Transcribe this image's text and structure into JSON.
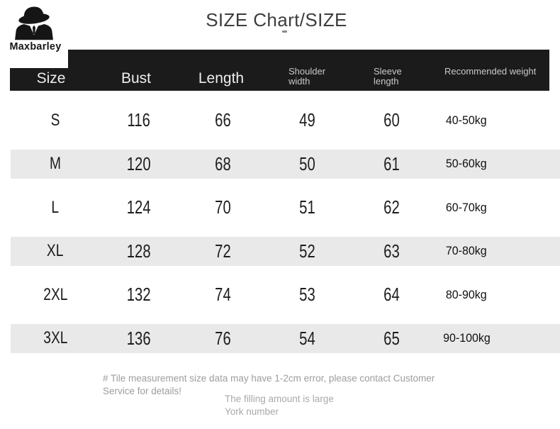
{
  "logo": {
    "brand": "Maxbarley",
    "icon": "hat-man-icon"
  },
  "title": "SIZE Chart/SIZE",
  "chart_data": {
    "type": "table",
    "title": "SIZE Chart/SIZE",
    "columns": [
      {
        "key": "size",
        "label": "Size"
      },
      {
        "key": "bust",
        "label": "Bust"
      },
      {
        "key": "length",
        "label": "Length"
      },
      {
        "key": "shoulder_width",
        "label": "Shoulder width"
      },
      {
        "key": "sleeve_length",
        "label": "Sleeve length"
      },
      {
        "key": "recommended_weight",
        "label": "Recommended weight"
      }
    ],
    "rows": [
      {
        "size": "S",
        "bust": "116",
        "length": "66",
        "shoulder_width": "49",
        "sleeve_length": "60",
        "recommended_weight": "40-50kg"
      },
      {
        "size": "M",
        "bust": "120",
        "length": "68",
        "shoulder_width": "50",
        "sleeve_length": "61",
        "recommended_weight": "50-60kg"
      },
      {
        "size": "L",
        "bust": "124",
        "length": "70",
        "shoulder_width": "51",
        "sleeve_length": "62",
        "recommended_weight": "60-70kg"
      },
      {
        "size": "XL",
        "bust": "128",
        "length": "72",
        "shoulder_width": "52",
        "sleeve_length": "63",
        "recommended_weight": "70-80kg"
      },
      {
        "size": "2XL",
        "bust": "132",
        "length": "74",
        "shoulder_width": "53",
        "sleeve_length": "64",
        "recommended_weight": "80-90kg"
      },
      {
        "size": "3XL",
        "bust": "136",
        "length": "76",
        "shoulder_width": "54",
        "sleeve_length": "65",
        "recommended_weight": "90-100kg"
      }
    ],
    "layout": {
      "zebra_striped_rows": [
        "M",
        "XL",
        "3XL"
      ],
      "header_bg": "#1b1b1b",
      "stripe_bg": "#e9e9e9"
    }
  },
  "footer": {
    "note": "# Tile measurement size data may have 1-2cm error, please contact Customer Service for details!",
    "extra_line1": "The filling amount is large",
    "extra_line2": "York number"
  }
}
